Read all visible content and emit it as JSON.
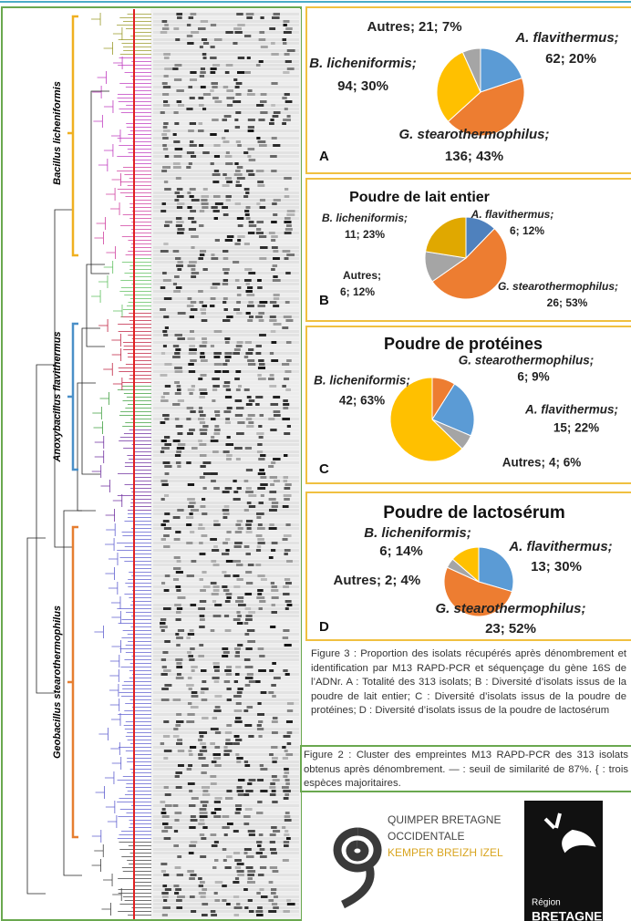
{
  "chart_data": [
    {
      "type": "pie",
      "panel": "A",
      "categories": [
        "A. flavithermus;",
        "G. stearothermophilus;",
        "B. licheniformis;",
        "Autres;"
      ],
      "values": [
        62,
        136,
        94,
        21
      ],
      "value_labels": [
        "62; 20%",
        "136; 43%",
        "94; 30%",
        "21; 7%"
      ],
      "colors": [
        "#5b9bd5",
        "#ed7d31",
        "#ffc000",
        "#a5a5a5"
      ]
    },
    {
      "type": "pie",
      "panel": "B",
      "title": "Poudre de lait entier",
      "categories": [
        "A. flavithermus;",
        "G. stearothermophilus;",
        "Autres;",
        "B. licheniformis;"
      ],
      "values": [
        6,
        26,
        6,
        11
      ],
      "value_labels": [
        "6; 12%",
        "26; 53%",
        "6; 12%",
        "11; 23%"
      ],
      "colors": [
        "#4f81bd",
        "#ed7d31",
        "#a5a5a5",
        "#e0a800"
      ]
    },
    {
      "type": "pie",
      "panel": "C",
      "title": "Poudre de protéines",
      "categories": [
        "G. stearothermophilus;",
        "A. flavithermus;",
        "Autres;",
        "B. licheniformis;"
      ],
      "values": [
        6,
        15,
        4,
        42
      ],
      "value_labels": [
        "6; 9%",
        "15; 22%",
        "4; 6%",
        "42; 63%"
      ],
      "colors": [
        "#ed7d31",
        "#5b9bd5",
        "#a5a5a5",
        "#ffc000"
      ]
    },
    {
      "type": "pie",
      "panel": "D",
      "title": "Poudre de lactosérum",
      "categories": [
        "A. flavithermus;",
        "G. stearothermophilus;",
        "Autres;",
        "B. licheniformis;"
      ],
      "values": [
        13,
        23,
        2,
        6
      ],
      "value_labels": [
        "13; 30%",
        "23; 52%",
        "2; 4%",
        "6; 14%"
      ],
      "colors": [
        "#5b9bd5",
        "#ed7d31",
        "#a5a5a5",
        "#ffc000"
      ]
    }
  ],
  "dendrogram": {
    "clusters": [
      "Bacillus licheniformis",
      "Anoxybacillus flavithermus",
      "Geobacillus stearothermophilus"
    ]
  },
  "figure3_caption": "Figure 3 : Proportion des isolats récupérés après dénombrement et identification par M13 RAPD-PCR et séquençage du gène 16S de l’ADNr. A : Totalité des 313 isolats; B : Diversité d’isolats issus de la poudre de lait entier; C : Diversité d’isolats issus de la poudre de protéines; D : Diversité d’isolats issus de la poudre de lactosérum",
  "figure2_caption": "Figure 2 : Cluster des empreintes M13 RAPD-PCR des 313 isolats obtenus après dénombrement. — : seuil de similarité de 87%. { : trois espèces majoritaires.",
  "logos": {
    "quimper": [
      "QUIMPER BRETAGNE",
      "OCCIDENTALE",
      "KEMPER BREIZH IZEL"
    ],
    "region": [
      "Région",
      "BRETAGNE"
    ]
  }
}
